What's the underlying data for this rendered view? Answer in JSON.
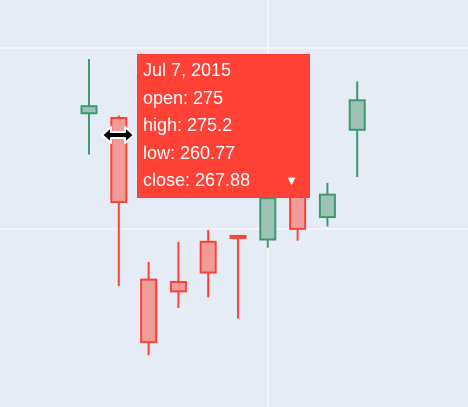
{
  "chart_data": {
    "type": "candlestick",
    "colors": {
      "increasing": "#3d9970",
      "decreasing": "#ff4136",
      "background": "#e5ecf6",
      "grid": "#ffffff"
    },
    "candles": [
      {
        "open": 275.4,
        "high": 280.0,
        "low": 271.9,
        "close": 276.0,
        "dir": "up"
      },
      {
        "open": 275.0,
        "high": 275.2,
        "low": 260.77,
        "close": 267.88,
        "dir": "down",
        "date": "Jul 7, 2015"
      },
      {
        "open": 261.3,
        "high": 262.8,
        "low": 254.9,
        "close": 256.0,
        "dir": "down"
      },
      {
        "open": 261.1,
        "high": 264.5,
        "low": 258.9,
        "close": 260.3,
        "dir": "down"
      },
      {
        "open": 264.5,
        "high": 265.5,
        "low": 259.8,
        "close": 261.9,
        "dir": "down"
      },
      {
        "open": 265.0,
        "high": 265.0,
        "low": 258.0,
        "close": 264.9,
        "dir": "down"
      },
      {
        "open": 264.7,
        "high": 269.0,
        "low": 264.0,
        "close": 268.2,
        "dir": "up"
      },
      {
        "open": 268.5,
        "high": 269.7,
        "low": 264.6,
        "close": 265.6,
        "dir": "down"
      },
      {
        "open": 266.6,
        "high": 269.5,
        "low": 265.8,
        "close": 268.5,
        "dir": "up"
      },
      {
        "open": 274.0,
        "high": 278.1,
        "low": 270.0,
        "close": 276.5,
        "dir": "up"
      }
    ],
    "ylim": [
      250.5,
      285.0
    ],
    "grid": true
  },
  "tooltip": {
    "date": "Jul 7, 2015",
    "open": "open: 275",
    "high": "high: 275.2",
    "low": "low: 260.77",
    "close": "close: 267.88",
    "caret": "▼"
  }
}
